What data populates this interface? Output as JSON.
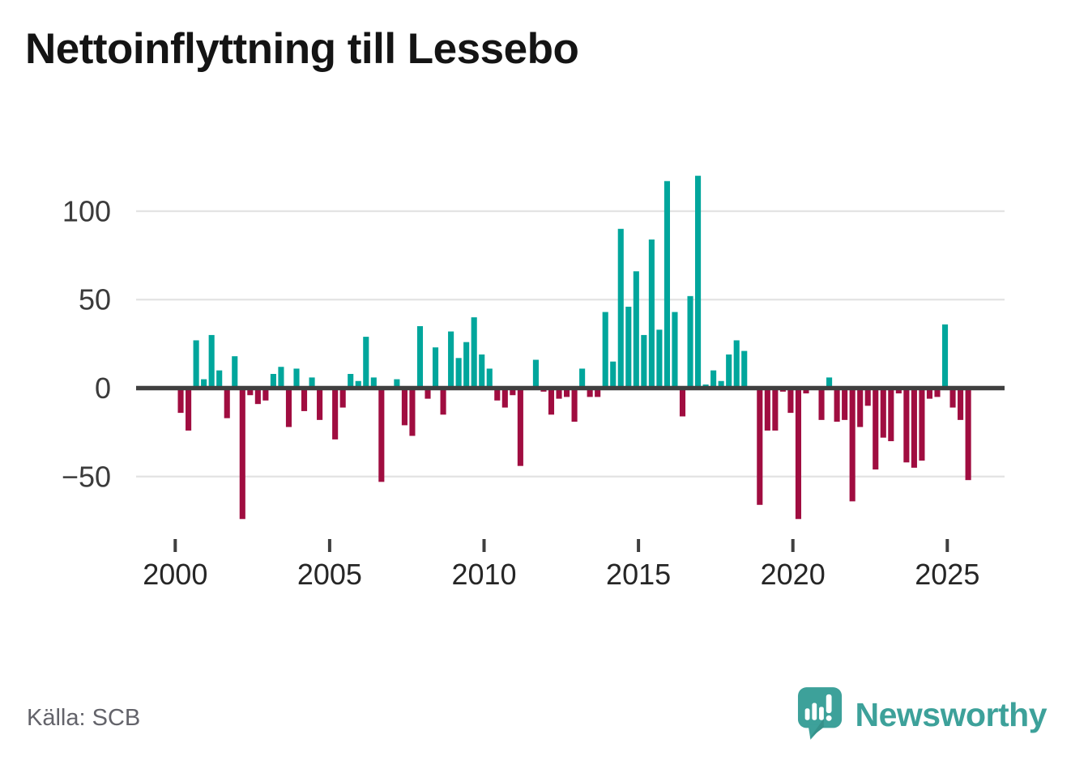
{
  "title": "Nettoinflyttning till Lessebo",
  "source": "Källa: SCB",
  "branding": {
    "logo_text": "Newsworthy",
    "logo_icon": "newsworthy-speech-bubble-bars-icon"
  },
  "colors": {
    "positive_bar": "#00a69c",
    "negative_bar": "#a00d40",
    "zero_line": "#3f3f3f",
    "gridline": "#e4e4e4",
    "axis_tick_text": "#3b3b3b",
    "x_label_text": "#262626",
    "brand_teal": "#3da19a"
  },
  "chart_data": {
    "type": "bar",
    "title": "Nettoinflyttning till Lessebo",
    "x_unit": "quarter",
    "start": "2000Q1",
    "end": "2025Q3",
    "xlabel": "",
    "ylabel": "",
    "ylim": [
      -80,
      125
    ],
    "y_ticks": [
      100,
      50,
      0,
      -50
    ],
    "x_tick_years": [
      2000,
      2005,
      2010,
      2015,
      2020,
      2025
    ],
    "grid": "horizontal",
    "legend": "none",
    "positive_color_meaning": "net in-migration",
    "negative_color_meaning": "net out-migration",
    "by_year": {
      "2000": [
        -14,
        -24,
        27,
        5
      ],
      "2001": [
        30,
        10,
        -17,
        18
      ],
      "2002": [
        -74,
        -4,
        -9,
        -7
      ],
      "2003": [
        8,
        12,
        -22,
        11
      ],
      "2004": [
        -13,
        6,
        -18,
        0
      ],
      "2005": [
        -29,
        -11,
        8,
        4
      ],
      "2006": [
        29,
        6,
        -53,
        0
      ],
      "2007": [
        5,
        -21,
        -27,
        35
      ],
      "2008": [
        -6,
        23,
        -15,
        32
      ],
      "2009": [
        17,
        26,
        40,
        19
      ],
      "2010": [
        11,
        -7,
        -11,
        -4
      ],
      "2011": [
        -44,
        0,
        16,
        -2
      ],
      "2012": [
        -15,
        -6,
        -5,
        -19
      ],
      "2013": [
        11,
        -5,
        -5,
        43
      ],
      "2014": [
        15,
        90,
        46,
        66
      ],
      "2015": [
        30,
        84,
        33,
        117
      ],
      "2016": [
        43,
        -16,
        52,
        120
      ],
      "2017": [
        2,
        10,
        4,
        19
      ],
      "2018": [
        27,
        21,
        0,
        -66
      ],
      "2019": [
        -24,
        -24,
        -2,
        -14
      ],
      "2020": [
        -74,
        -3,
        0,
        -18
      ],
      "2021": [
        6,
        -19,
        -18,
        -64
      ],
      "2022": [
        -22,
        -10,
        -46,
        -28
      ],
      "2023": [
        -30,
        -3,
        -42,
        -45
      ],
      "2024": [
        -41,
        -6,
        -5,
        36
      ],
      "2025": [
        -11,
        -18,
        -52
      ]
    }
  }
}
